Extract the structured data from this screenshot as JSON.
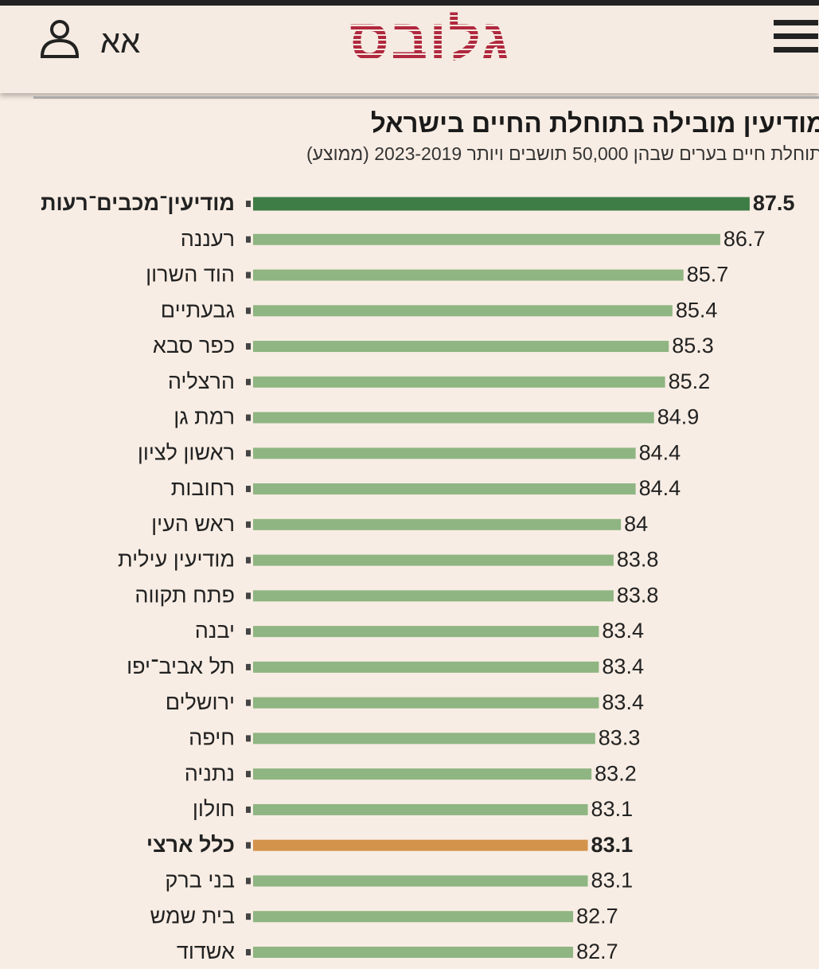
{
  "header": {
    "logo": "גלובס",
    "font_toggle": "אא"
  },
  "chart_data": {
    "type": "hbar",
    "title": "מודיעין מובילה בתוחלת החיים בישראל",
    "subtitle": "תוחלת חיים בערים שבהן 50,000 תושבים ויותר 2023-2019 (ממוצע)",
    "categories": [
      "מודיעין־מכבים־רעות",
      "רעננה",
      "הוד השרון",
      "גבעתיים",
      "כפר סבא",
      "הרצליה",
      "רמת גן",
      "ראשון לציון",
      "רחובות",
      "ראש העין",
      "מודיעין עילית",
      "פתח תקווה",
      "יבנה",
      "תל אביב־יפו",
      "ירושלים",
      "חיפה",
      "נתניה",
      "חולון",
      "כלל ארצי",
      "בני ברק",
      "בית שמש",
      "אשדוד"
    ],
    "values": [
      87.5,
      86.7,
      85.7,
      85.4,
      85.3,
      85.2,
      84.9,
      84.4,
      84.4,
      84,
      83.8,
      83.8,
      83.4,
      83.4,
      83.4,
      83.3,
      83.2,
      83.1,
      83.1,
      83.1,
      82.7,
      82.7
    ],
    "colors": [
      "#3f7d46",
      "#8fb582",
      "#8fb582",
      "#8fb582",
      "#8fb582",
      "#8fb582",
      "#8fb582",
      "#8fb582",
      "#8fb582",
      "#8fb582",
      "#8fb582",
      "#8fb582",
      "#8fb582",
      "#8fb582",
      "#8fb582",
      "#8fb582",
      "#8fb582",
      "#8fb582",
      "#d4934b",
      "#8fb582",
      "#8fb582",
      "#8fb582"
    ],
    "bold": [
      0,
      18
    ],
    "xlim": [
      74,
      88
    ]
  }
}
